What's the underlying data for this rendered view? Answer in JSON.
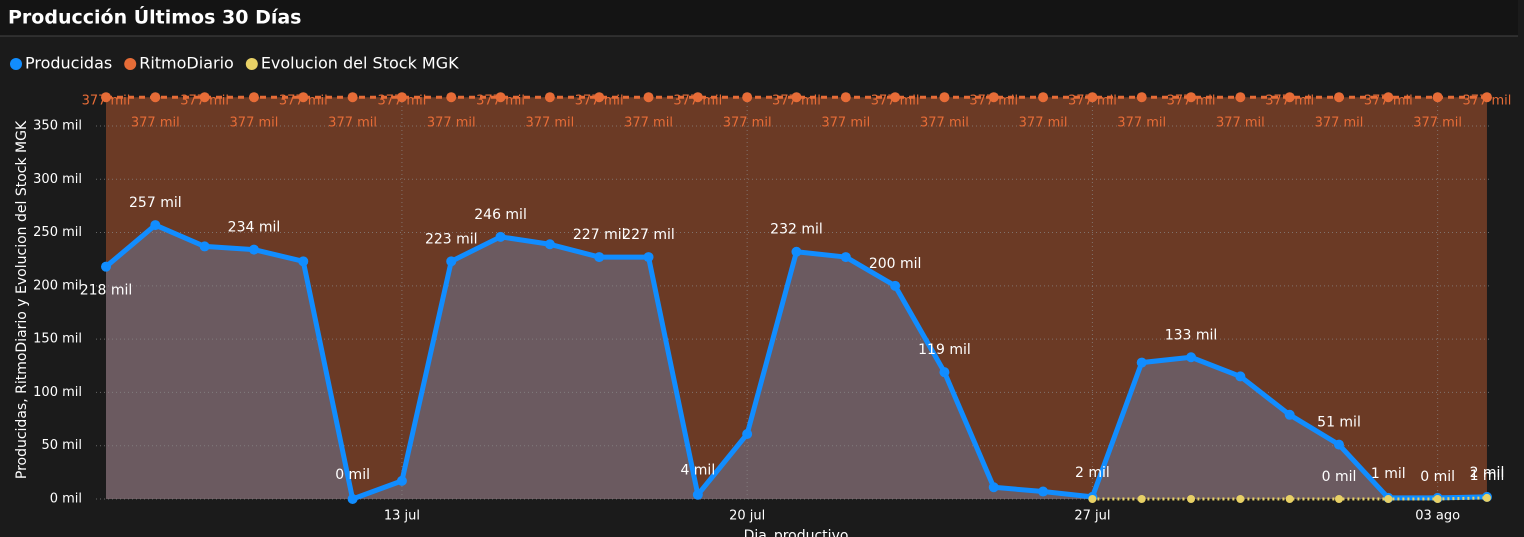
{
  "chart_data": {
    "type": "area-line",
    "title": "Producción Últimos 30 Días",
    "y_label": "Producidas, RitmoDiario y Evolucion del Stock MGK",
    "x_label": "Dia_productivo",
    "x": [
      "07-07",
      "07-08",
      "07-09",
      "07-10",
      "07-11",
      "07-12",
      "07-13",
      "07-14",
      "07-15",
      "07-16",
      "07-17",
      "07-18",
      "07-19",
      "07-20",
      "07-21",
      "07-22",
      "07-23",
      "07-24",
      "07-25",
      "07-26",
      "07-27",
      "07-28",
      "07-29",
      "07-30",
      "07-31",
      "08-01",
      "08-02",
      "08-03",
      "08-04"
    ],
    "xticks": [
      {
        "value": "07-13",
        "label": "13 jul"
      },
      {
        "value": "07-20",
        "label": "20 jul"
      },
      {
        "value": "07-27",
        "label": "27 jul"
      },
      {
        "value": "08-03",
        "label": "03 ago"
      }
    ],
    "ylim": [
      0,
      380
    ],
    "yticks": [
      {
        "value": 0,
        "label": "0 mil"
      },
      {
        "value": 50,
        "label": "50 mil"
      },
      {
        "value": 100,
        "label": "100 mil"
      },
      {
        "value": 150,
        "label": "150 mil"
      },
      {
        "value": 200,
        "label": "200 mil"
      },
      {
        "value": 250,
        "label": "250 mil"
      },
      {
        "value": 300,
        "label": "300 mil"
      },
      {
        "value": 350,
        "label": "350 mil"
      }
    ],
    "grid": true,
    "series": [
      {
        "name": "Producidas",
        "color": "#118dff",
        "fill": "#6b5a60",
        "values": [
          218,
          257,
          237,
          234,
          223,
          0,
          17,
          223,
          246,
          239,
          227,
          227,
          4,
          61,
          232,
          227,
          200,
          119,
          11,
          7,
          2,
          128,
          133,
          115,
          79,
          51,
          1,
          1,
          2
        ],
        "value_labels": [
          "218 mil",
          "257 mil",
          null,
          "234 mil",
          null,
          "0 mil",
          null,
          "223 mil",
          "246 mil",
          null,
          "227 mil",
          "227 mil",
          "4 mil",
          null,
          "232 mil",
          null,
          "200 mil",
          "119 mil",
          null,
          null,
          "2 mil",
          null,
          "133 mil",
          null,
          null,
          "51 mil",
          "1 mil",
          null,
          "2 mil"
        ]
      },
      {
        "name": "RitmoDiario",
        "color": "#e66c37",
        "fill": "#6b3a25",
        "values": [
          377,
          377,
          377,
          377,
          377,
          377,
          377,
          377,
          377,
          377,
          377,
          377,
          377,
          377,
          377,
          377,
          377,
          377,
          377,
          377,
          377,
          377,
          377,
          377,
          377,
          377,
          377,
          377,
          377
        ],
        "value_labels": [
          "377 mil",
          "377 mil",
          "377 mil",
          "377 mil",
          "377 mil",
          "377 mil",
          "377 mil",
          "377 mil",
          "377 mil",
          "377 mil",
          "377 mil",
          "377 mil",
          "377 mil",
          "377 mil",
          "377 mil",
          "377 mil",
          "377 mil",
          "377 mil",
          "377 mil",
          "377 mil",
          "377 mil",
          "377 mil",
          "377 mil",
          "377 mil",
          "377 mil",
          "377 mil",
          "377 mil",
          "377 mil",
          "377 mil"
        ]
      },
      {
        "name": "Evolucion del Stock MGK",
        "color": "#e8d166",
        "values": [
          null,
          null,
          null,
          null,
          null,
          null,
          null,
          null,
          null,
          null,
          null,
          null,
          null,
          null,
          null,
          null,
          null,
          null,
          null,
          null,
          0,
          0,
          0,
          0,
          0,
          0,
          0,
          0,
          1
        ],
        "value_labels": [
          null,
          null,
          null,
          null,
          null,
          null,
          null,
          null,
          null,
          null,
          null,
          null,
          null,
          null,
          null,
          null,
          null,
          null,
          null,
          null,
          null,
          null,
          null,
          null,
          null,
          "0 mil",
          null,
          "0 mil",
          "1 mil"
        ]
      }
    ]
  }
}
